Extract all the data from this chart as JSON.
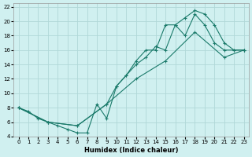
{
  "xlabel": "Humidex (Indice chaleur)",
  "bg_color": "#d0f0f0",
  "grid_color": "#b0d8d8",
  "line_color": "#1a7a6a",
  "xlim": [
    -0.5,
    23.5
  ],
  "ylim": [
    4,
    22.5
  ],
  "xticks": [
    0,
    1,
    2,
    3,
    4,
    5,
    6,
    7,
    8,
    9,
    10,
    11,
    12,
    13,
    14,
    15,
    16,
    17,
    18,
    19,
    20,
    21,
    22,
    23
  ],
  "yticks": [
    4,
    6,
    8,
    10,
    12,
    14,
    16,
    18,
    20,
    22
  ],
  "line1_x": [
    0,
    1,
    2,
    3,
    4,
    5,
    6,
    7,
    8,
    9,
    10,
    11,
    12,
    13,
    14,
    15,
    16,
    17,
    18,
    19,
    20,
    21,
    22,
    23
  ],
  "line1_y": [
    8,
    7.5,
    6.5,
    6,
    5.5,
    5,
    4.5,
    4.5,
    8.5,
    6.5,
    11,
    12.5,
    14.5,
    16,
    16,
    19.5,
    19.5,
    20.5,
    21.5,
    21,
    19.5,
    17,
    16,
    16
  ],
  "line2_x": [
    0,
    3,
    6,
    9,
    12,
    15,
    18,
    21,
    23
  ],
  "line2_y": [
    8,
    6,
    5.5,
    8.5,
    12,
    14.5,
    18.5,
    15,
    16
  ],
  "line3_x": [
    0,
    3,
    6,
    9,
    10,
    11,
    12,
    13,
    14,
    15,
    16,
    17,
    18,
    19,
    20,
    21,
    22,
    23
  ],
  "line3_y": [
    8,
    6,
    5.5,
    8.5,
    11,
    12.5,
    14,
    15,
    16.5,
    16,
    19.5,
    18,
    21,
    19.5,
    17,
    16,
    16,
    16
  ]
}
